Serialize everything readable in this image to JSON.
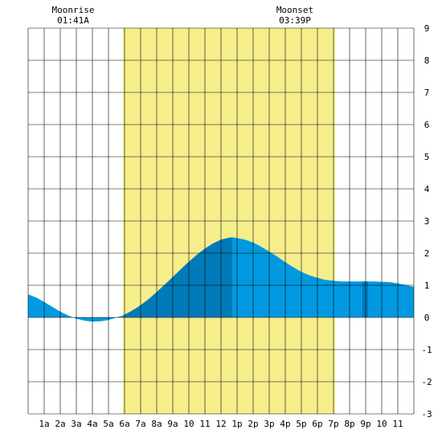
{
  "moon": {
    "rise": {
      "label": "Moonrise",
      "time": "01:41A",
      "hour": 1.68
    },
    "set": {
      "label": "Moonset",
      "time": "03:39P",
      "hour": 15.65
    }
  },
  "colors": {
    "daylight": "#f5ee8a",
    "tide_day": "#0099e0",
    "tide_dark": "#007ab8",
    "grid": "#000000"
  },
  "chart_data": {
    "type": "area",
    "title": "",
    "xlabel": "",
    "ylabel": "",
    "xlim": [
      0,
      24
    ],
    "ylim": [
      -3,
      9
    ],
    "grid": true,
    "x_ticks": [
      {
        "hour": 1,
        "label": "1a"
      },
      {
        "hour": 2,
        "label": "2a"
      },
      {
        "hour": 3,
        "label": "3a"
      },
      {
        "hour": 4,
        "label": "4a"
      },
      {
        "hour": 5,
        "label": "5a"
      },
      {
        "hour": 6,
        "label": "6a"
      },
      {
        "hour": 7,
        "label": "7a"
      },
      {
        "hour": 8,
        "label": "8a"
      },
      {
        "hour": 9,
        "label": "9a"
      },
      {
        "hour": 10,
        "label": "10"
      },
      {
        "hour": 11,
        "label": "11"
      },
      {
        "hour": 12,
        "label": "12"
      },
      {
        "hour": 13,
        "label": "1p"
      },
      {
        "hour": 14,
        "label": "2p"
      },
      {
        "hour": 15,
        "label": "3p"
      },
      {
        "hour": 16,
        "label": "4p"
      },
      {
        "hour": 17,
        "label": "5p"
      },
      {
        "hour": 18,
        "label": "6p"
      },
      {
        "hour": 19,
        "label": "7p"
      },
      {
        "hour": 20,
        "label": "8p"
      },
      {
        "hour": 21,
        "label": "9p"
      },
      {
        "hour": 22,
        "label": "10"
      },
      {
        "hour": 23,
        "label": "11"
      }
    ],
    "y_ticks": [
      -3,
      -2,
      -1,
      0,
      1,
      2,
      3,
      4,
      5,
      6,
      7,
      8,
      9
    ],
    "daylight": {
      "start": 5.9,
      "end": 19.1
    },
    "dark_bands": [
      {
        "start": 5.9,
        "end": 12.7
      },
      {
        "start": 20.8,
        "end": 21.15
      }
    ],
    "series": [
      {
        "x": [
          0,
          0.5,
          1,
          1.5,
          2,
          2.5,
          3,
          3.5,
          4,
          4.5,
          5,
          5.5,
          5.9,
          6.5,
          7,
          7.5,
          8,
          8.5,
          9,
          9.5,
          10,
          10.5,
          11,
          11.5,
          12,
          12.5,
          12.7,
          13,
          13.5,
          14,
          14.5,
          15,
          15.5,
          16,
          16.5,
          17,
          17.5,
          18,
          18.5,
          19,
          19.5,
          20,
          20.5,
          21,
          21.5,
          22,
          22.5,
          23,
          23.5,
          24
        ],
        "y": [
          0.72,
          0.62,
          0.48,
          0.33,
          0.18,
          0.06,
          -0.04,
          -0.1,
          -0.13,
          -0.12,
          -0.08,
          0.0,
          0.06,
          0.22,
          0.38,
          0.57,
          0.79,
          1.02,
          1.26,
          1.5,
          1.73,
          1.95,
          2.14,
          2.3,
          2.42,
          2.48,
          2.49,
          2.47,
          2.42,
          2.33,
          2.2,
          2.05,
          1.89,
          1.72,
          1.56,
          1.42,
          1.31,
          1.23,
          1.17,
          1.14,
          1.12,
          1.12,
          1.12,
          1.12,
          1.12,
          1.11,
          1.1,
          1.06,
          1.01,
          0.95
        ]
      }
    ]
  }
}
